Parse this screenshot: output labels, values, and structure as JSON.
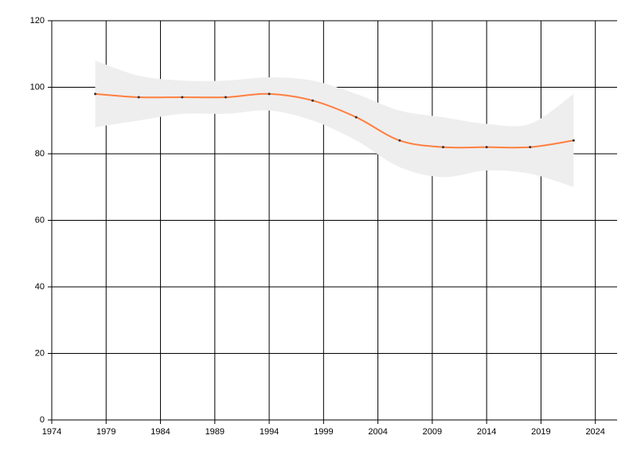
{
  "chart_data": {
    "type": "line",
    "x": [
      1978,
      1982,
      1986,
      1990,
      1994,
      1998,
      2002,
      2006,
      2010,
      2014,
      2018,
      2022
    ],
    "series": [
      {
        "color": "#ff7f3f",
        "values": [
          98,
          97,
          97,
          97,
          98,
          96,
          91,
          84,
          82,
          82,
          82,
          84
        ],
        "upper": [
          108,
          103.5,
          102,
          102,
          103,
          102,
          98,
          93,
          91,
          89,
          89,
          98
        ],
        "lower": [
          88,
          90,
          92,
          92,
          93,
          90,
          84,
          76,
          73,
          75,
          74,
          70
        ],
        "band_color": "#eeeeee"
      }
    ],
    "xlim": [
      1974,
      2026
    ],
    "xticks": [
      1974,
      1979,
      1984,
      1989,
      1994,
      1999,
      2004,
      2009,
      2014,
      2019,
      2024
    ],
    "ylim": [
      0,
      120
    ],
    "yticks": [
      0,
      20,
      40,
      60,
      80,
      100,
      120
    ],
    "grid": true
  }
}
